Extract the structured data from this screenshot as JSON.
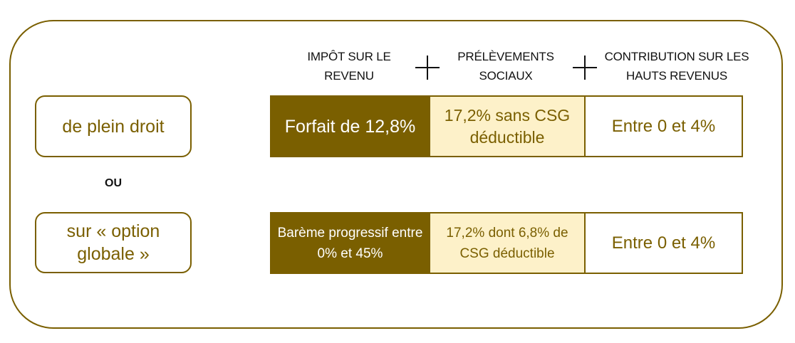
{
  "headers": {
    "col1": "IMPÔT SUR LE REVENU",
    "col2": "PRÉLÈVEMENTS SOCIAUX",
    "col3": "CONTRIBUTION SUR LES HAUTS REVENUS"
  },
  "operators": {
    "plus1": "plus-icon",
    "plus2": "plus-icon"
  },
  "modes": {
    "option1": "de plein droit",
    "separator": "OU",
    "option2": "sur « option globale »"
  },
  "rows": [
    {
      "impot": "Forfait de 12,8%",
      "prelevements": "17,2% sans CSG déductible",
      "contribution": "Entre 0 et 4%"
    },
    {
      "impot": "Barème progressif entre 0% et 45%",
      "prelevements": "17,2% dont 6,8% de CSG déductible",
      "contribution": "Entre 0 et 4%"
    }
  ],
  "colors": {
    "accent": "#7a5f00",
    "light_fill": "#fdf1c9"
  }
}
